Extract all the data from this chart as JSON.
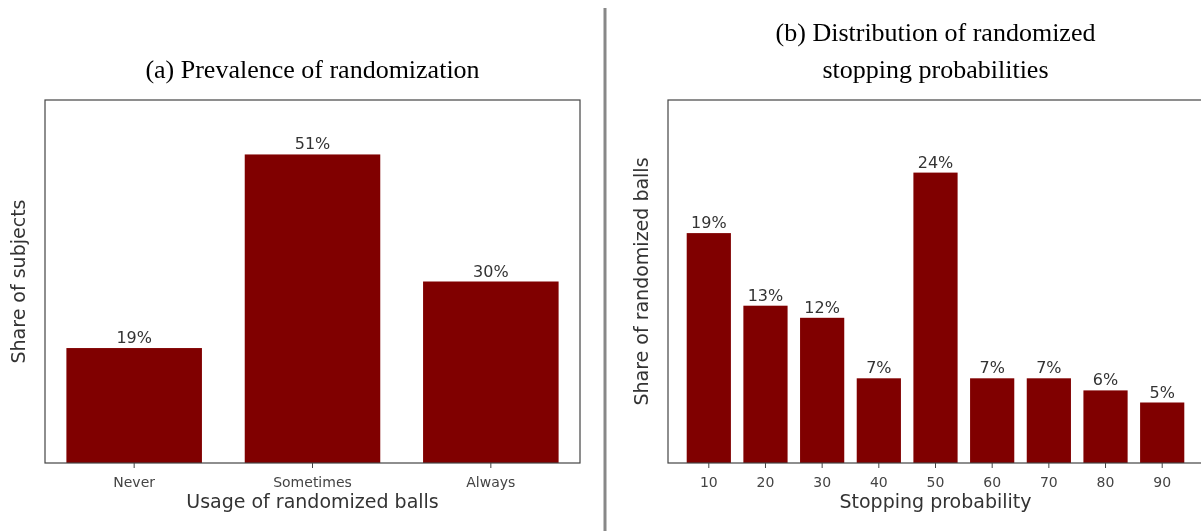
{
  "chart_data": [
    {
      "type": "bar",
      "title": "(a) Prevalence of randomization",
      "xlabel": "Usage of randomized balls",
      "ylabel": "Share of subjects",
      "categories": [
        "Never",
        "Sometimes",
        "Always"
      ],
      "values": [
        19,
        51,
        30
      ],
      "value_labels": [
        "19%",
        "51%",
        "30%"
      ],
      "color": "#800000",
      "ylim": [
        0,
        60
      ],
      "tick_labels": "x"
    },
    {
      "type": "bar",
      "title": "(b) Distribution of randomized stopping probabilities",
      "xlabel": "Stopping probability",
      "ylabel": "Share of randomized balls",
      "categories": [
        "10",
        "20",
        "30",
        "40",
        "50",
        "60",
        "70",
        "80",
        "90"
      ],
      "values": [
        19,
        13,
        12,
        7,
        24,
        7,
        7,
        6,
        5
      ],
      "value_labels": [
        "19%",
        "13%",
        "12%",
        "7%",
        "24%",
        "7%",
        "7%",
        "6%",
        "5%"
      ],
      "color": "#800000",
      "ylim": [
        0,
        30
      ],
      "tick_labels": "x"
    }
  ]
}
